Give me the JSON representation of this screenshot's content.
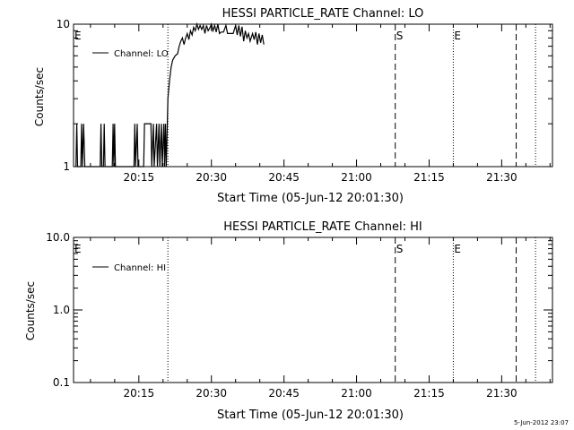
{
  "footer_date": "5-Jun-2012 23:07",
  "chart_data": [
    {
      "type": "line",
      "title": "HESSI PARTICLE_RATE Channel: LO",
      "xlabel": "Start Time (05-Jun-12 20:01:30)",
      "ylabel": "Counts/sec",
      "y_scale": "log",
      "ylim": [
        1,
        10
      ],
      "xlim": [
        "20:01:30",
        "21:40:30"
      ],
      "x_tick_labels": [
        "20:15",
        "20:30",
        "20:45",
        "21:00",
        "21:15",
        "21:30"
      ],
      "y_tick_labels": [
        "1",
        "10"
      ],
      "legend": "Channel: LO",
      "legend_position": "top-left",
      "markers": [
        {
          "label": "E",
          "time": "20:01:30",
          "style": "none"
        },
        {
          "label": "",
          "time": "20:21:00",
          "style": "dotted"
        },
        {
          "label": "S",
          "time": "21:08:00",
          "style": "dashed"
        },
        {
          "label": "E",
          "time": "21:20:00",
          "style": "dotted"
        },
        {
          "label": "",
          "time": "21:33:00",
          "style": "dashed"
        },
        {
          "label": "",
          "time": "21:37:00",
          "style": "dotted"
        }
      ],
      "series": [
        {
          "name": "Channel: LO",
          "points": [
            [
              "20:02:00",
              1
            ],
            [
              "20:02:10",
              2
            ],
            [
              "20:02:20",
              1
            ],
            [
              "20:03:00",
              1
            ],
            [
              "20:03:10",
              2
            ],
            [
              "20:03:20",
              1
            ],
            [
              "20:03:35",
              2
            ],
            [
              "20:03:50",
              1
            ],
            [
              "20:07:00",
              1
            ],
            [
              "20:07:10",
              2
            ],
            [
              "20:07:20",
              1
            ],
            [
              "20:07:40",
              1
            ],
            [
              "20:07:50",
              2
            ],
            [
              "20:08:00",
              1
            ],
            [
              "20:09:30",
              1
            ],
            [
              "20:09:40",
              2
            ],
            [
              "20:09:50",
              1
            ],
            [
              "20:10:00",
              2
            ],
            [
              "20:10:10",
              1
            ],
            [
              "20:14:00",
              1
            ],
            [
              "20:14:10",
              2
            ],
            [
              "20:14:20",
              1
            ],
            [
              "20:14:40",
              2
            ],
            [
              "20:14:50",
              1
            ],
            [
              "20:16:00",
              1
            ],
            [
              "20:16:10",
              2
            ],
            [
              "20:17:30",
              2
            ],
            [
              "20:17:40",
              1
            ],
            [
              "20:18:00",
              2
            ],
            [
              "20:18:10",
              1
            ],
            [
              "20:18:40",
              2
            ],
            [
              "20:18:50",
              1
            ],
            [
              "20:19:10",
              2
            ],
            [
              "20:19:20",
              1
            ],
            [
              "20:19:40",
              2
            ],
            [
              "20:19:50",
              1
            ],
            [
              "20:20:10",
              2
            ],
            [
              "20:20:20",
              1
            ],
            [
              "20:20:30",
              2
            ],
            [
              "20:20:40",
              1
            ],
            [
              "20:21:00",
              3
            ],
            [
              "20:21:20",
              4
            ],
            [
              "20:21:40",
              5
            ],
            [
              "20:22:00",
              5.6
            ],
            [
              "20:22:30",
              6
            ],
            [
              "20:23:00",
              6.2
            ],
            [
              "20:23:20",
              7
            ],
            [
              "20:23:40",
              7.6
            ],
            [
              "20:24:00",
              8
            ],
            [
              "20:24:20",
              7.2
            ],
            [
              "20:24:40",
              8
            ],
            [
              "20:25:00",
              8.6
            ],
            [
              "20:25:20",
              7.8
            ],
            [
              "20:25:40",
              9
            ],
            [
              "20:26:00",
              8.4
            ],
            [
              "20:26:20",
              9.5
            ],
            [
              "20:26:40",
              9
            ],
            [
              "20:27:00",
              10
            ],
            [
              "20:27:20",
              9.2
            ],
            [
              "20:27:40",
              9.8
            ],
            [
              "20:28:00",
              9.2
            ],
            [
              "20:28:20",
              9.8
            ],
            [
              "20:28:40",
              8.6
            ],
            [
              "20:29:00",
              9.8
            ],
            [
              "20:29:20",
              9
            ],
            [
              "20:29:40",
              9.4
            ],
            [
              "20:30:00",
              10
            ],
            [
              "20:30:20",
              9
            ],
            [
              "20:30:40",
              9.8
            ],
            [
              "20:31:00",
              8.8
            ],
            [
              "20:31:20",
              10
            ],
            [
              "20:31:40",
              8.6
            ],
            [
              "20:32:00",
              8.8
            ],
            [
              "20:32:30",
              8.8
            ],
            [
              "20:33:00",
              9.8
            ],
            [
              "20:33:20",
              8.6
            ],
            [
              "20:34:00",
              8.6
            ],
            [
              "20:34:30",
              8.6
            ],
            [
              "20:35:00",
              9.8
            ],
            [
              "20:35:20",
              8.4
            ],
            [
              "20:35:40",
              9.8
            ],
            [
              "20:36:00",
              8.2
            ],
            [
              "20:36:20",
              9.6
            ],
            [
              "20:36:40",
              7.6
            ],
            [
              "20:37:00",
              9
            ],
            [
              "20:37:20",
              8
            ],
            [
              "20:37:40",
              8.6
            ],
            [
              "20:38:00",
              7.6
            ],
            [
              "20:38:30",
              8.6
            ],
            [
              "20:38:50",
              7.8
            ],
            [
              "20:39:10",
              8.8
            ],
            [
              "20:39:30",
              7.2
            ],
            [
              "20:39:50",
              8.6
            ],
            [
              "20:40:10",
              7.4
            ],
            [
              "20:40:30",
              8.4
            ],
            [
              "20:40:50",
              7.2
            ]
          ]
        }
      ]
    },
    {
      "type": "line",
      "title": "HESSI PARTICLE_RATE Channel: HI",
      "xlabel": "Start Time (05-Jun-12 20:01:30)",
      "ylabel": "Counts/sec",
      "y_scale": "log",
      "ylim": [
        0.1,
        10
      ],
      "xlim": [
        "20:01:30",
        "21:40:30"
      ],
      "x_tick_labels": [
        "20:15",
        "20:30",
        "20:45",
        "21:00",
        "21:15",
        "21:30"
      ],
      "y_tick_labels": [
        "10.0",
        "1.0",
        "0.1"
      ],
      "legend": "Channel: HI",
      "legend_position": "top-left",
      "markers": [
        {
          "label": "E",
          "time": "20:01:30",
          "style": "none"
        },
        {
          "label": "",
          "time": "20:21:00",
          "style": "dotted"
        },
        {
          "label": "S",
          "time": "21:08:00",
          "style": "dashed"
        },
        {
          "label": "E",
          "time": "21:20:00",
          "style": "dotted"
        },
        {
          "label": "",
          "time": "21:33:00",
          "style": "dashed"
        },
        {
          "label": "",
          "time": "21:37:00",
          "style": "dotted"
        }
      ],
      "series": [
        {
          "name": "Channel: HI",
          "points": []
        }
      ]
    }
  ]
}
